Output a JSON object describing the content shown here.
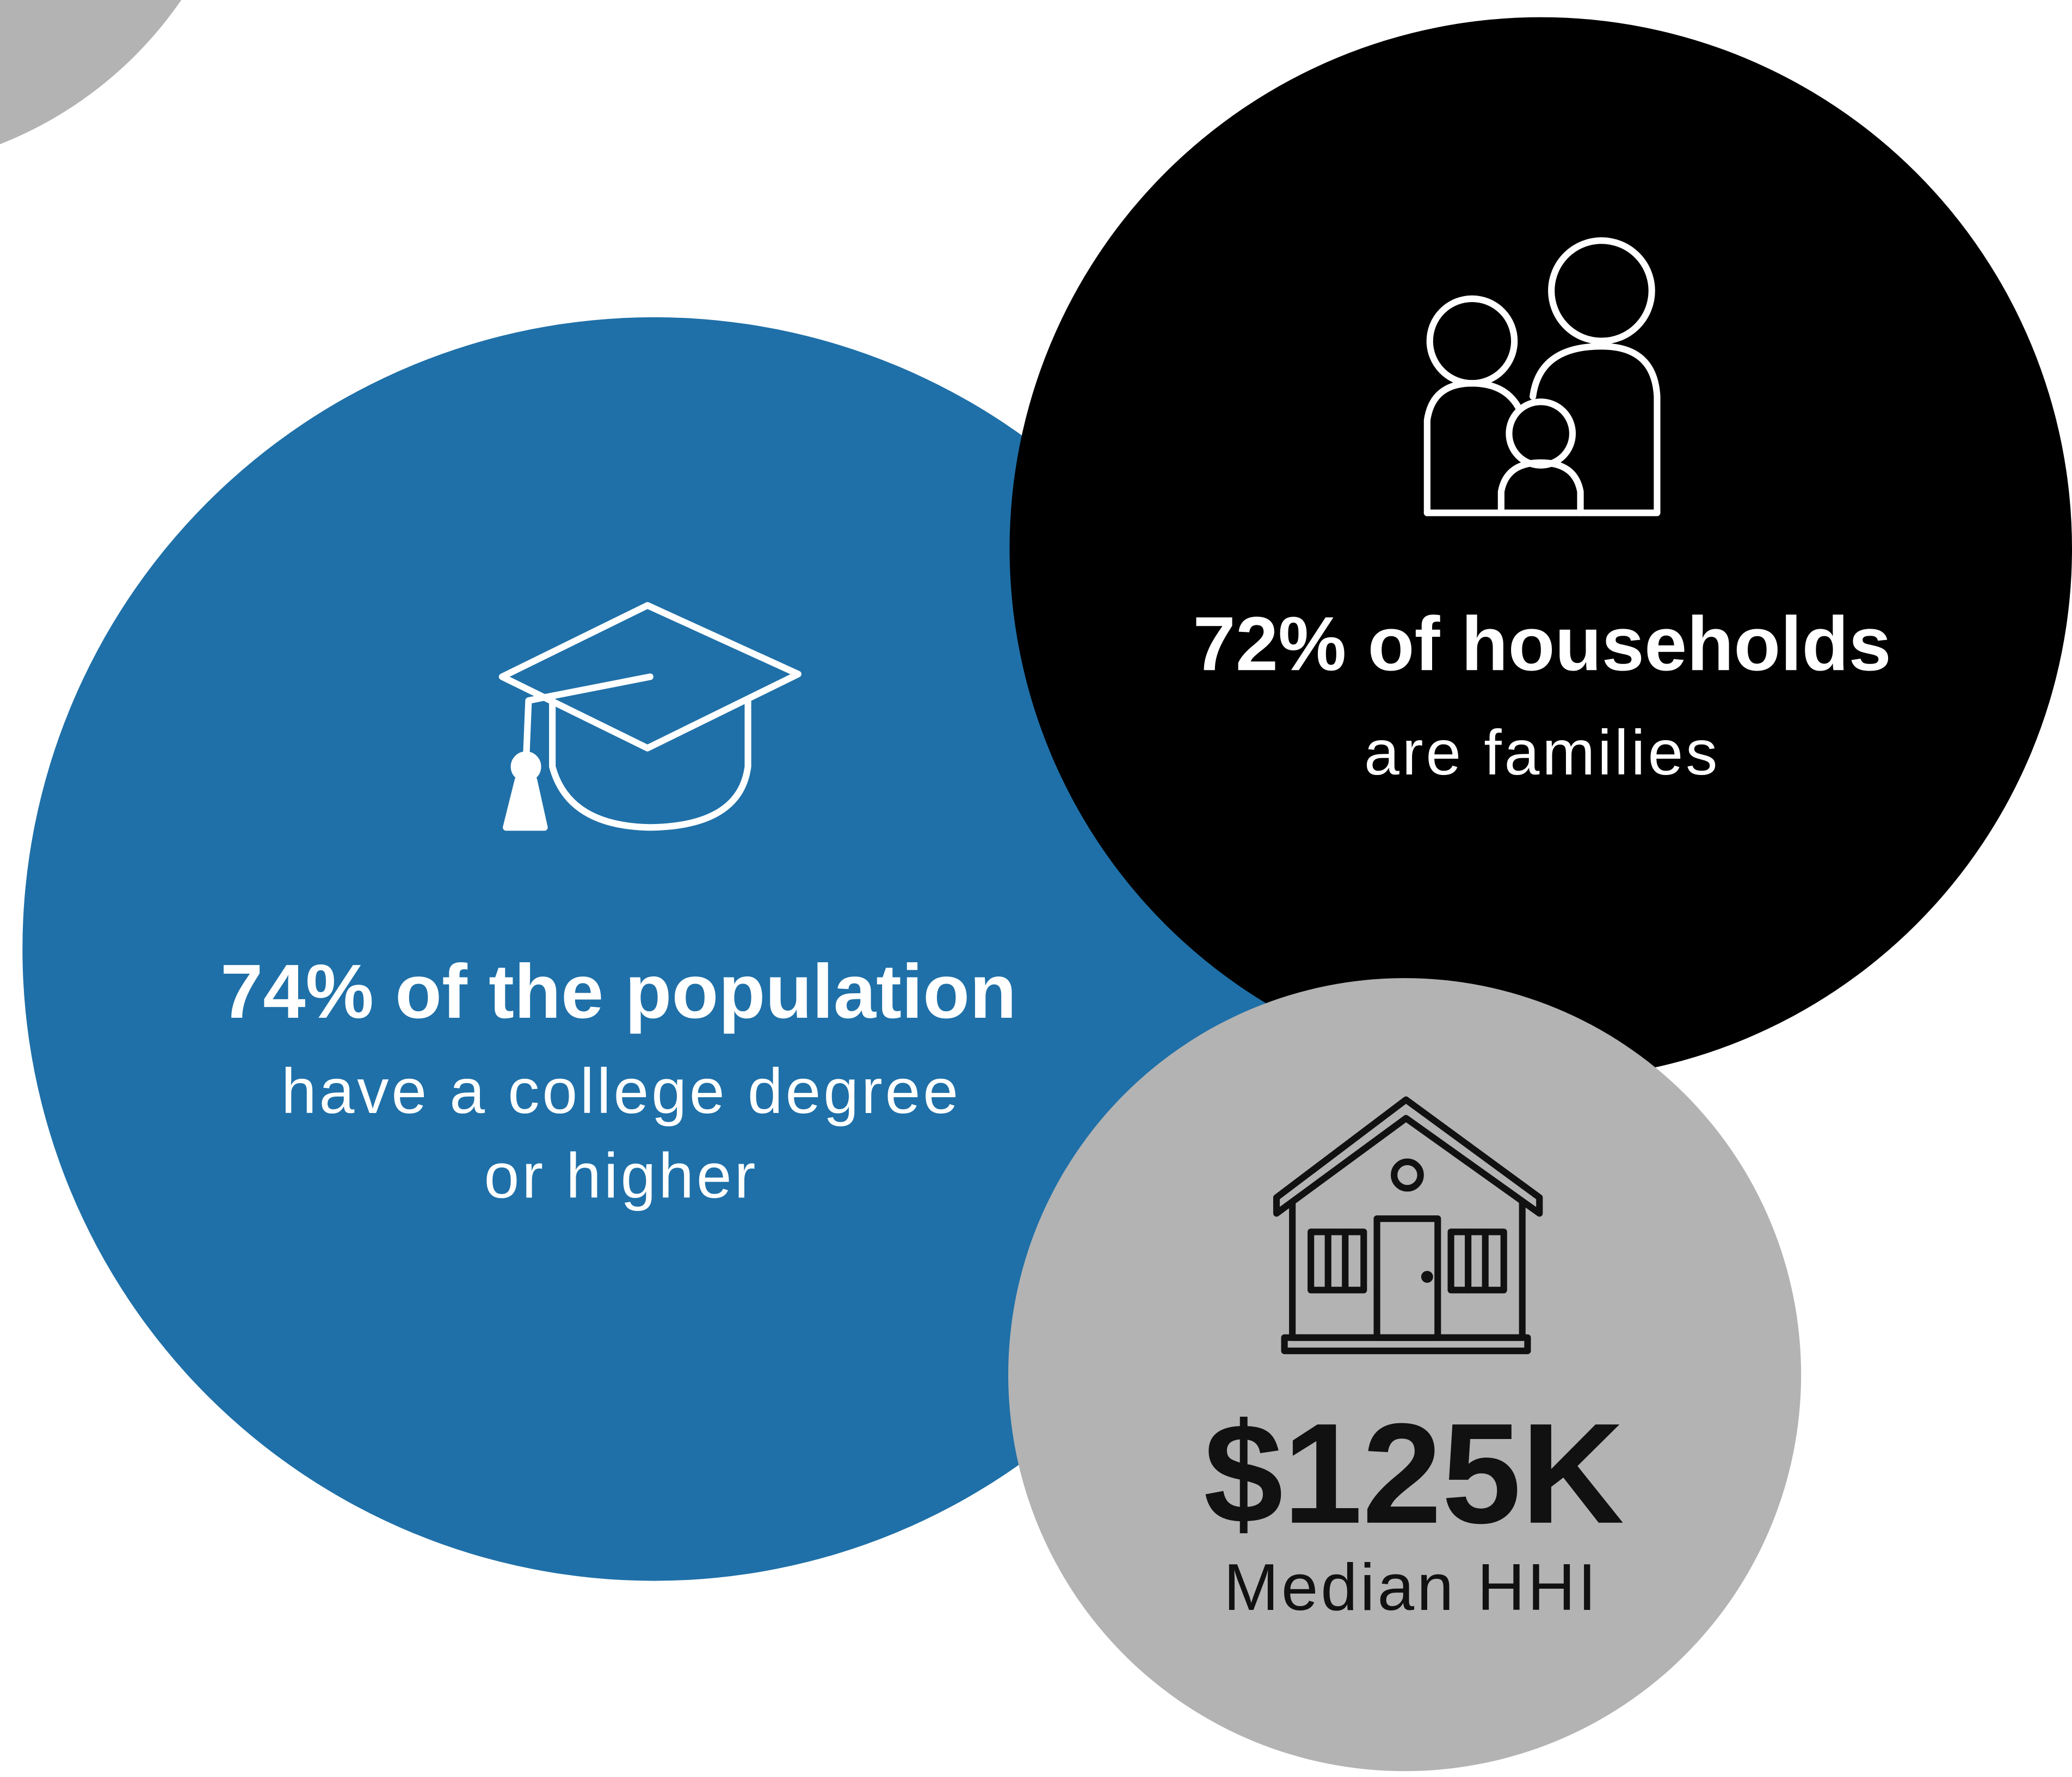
{
  "stats": [
    {
      "headline": "74% of the population",
      "detail": [
        "have a college degree",
        "or higher"
      ]
    },
    {
      "headline": "72% of households",
      "detail": [
        "are families"
      ]
    },
    {
      "headline": "$125K",
      "detail": [
        "Median HHI"
      ]
    }
  ]
}
